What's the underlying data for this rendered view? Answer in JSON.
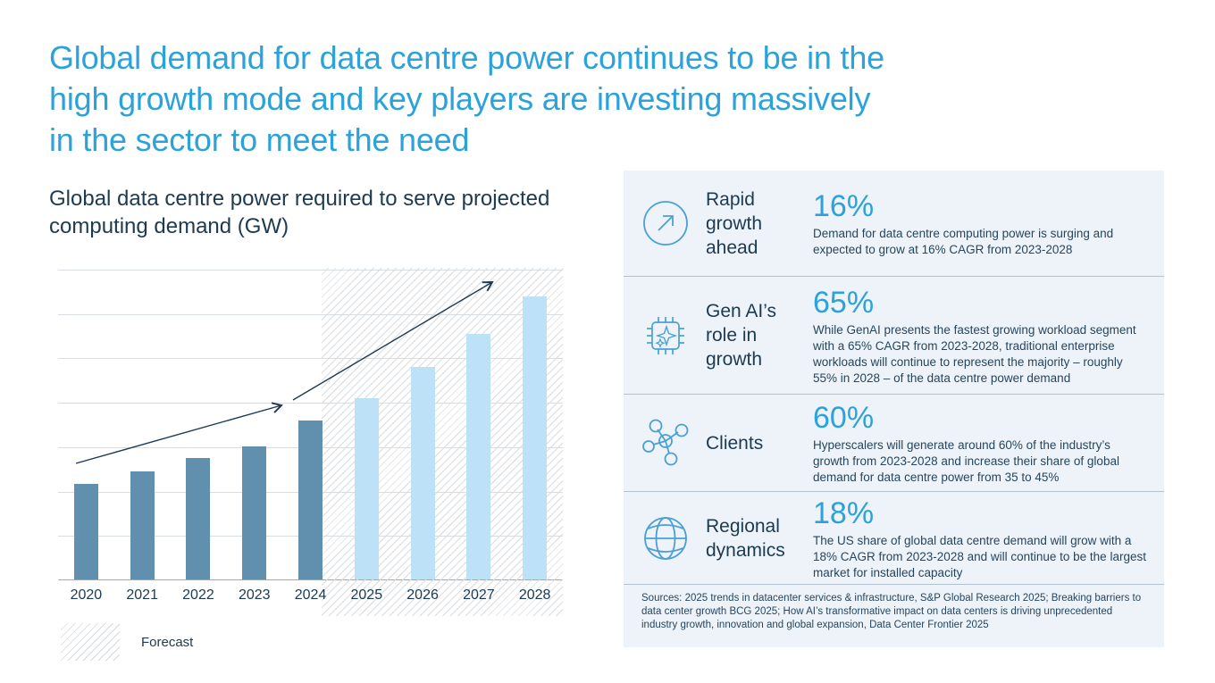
{
  "title": {
    "lines": [
      "Global demand for data centre power continues to be in the",
      "high growth mode and key players are investing massively",
      "in the sector to meet the need"
    ],
    "color": "#2BA2DA"
  },
  "chart": {
    "subtitle": "Global data centre power required to serve projected computing demand (GW)",
    "legend_label": "Forecast"
  },
  "chart_data": {
    "type": "bar",
    "title": "Global data centre power required to serve projected computing demand (GW)",
    "categories": [
      "2020",
      "2021",
      "2022",
      "2023",
      "2024",
      "2025",
      "2026",
      "2027",
      "2028"
    ],
    "values": [
      43,
      49,
      55,
      60,
      72,
      82,
      96,
      111,
      128
    ],
    "units": "GW",
    "actual_years": [
      "2020",
      "2021",
      "2022",
      "2023",
      "2024"
    ],
    "forecast_years": [
      "2025",
      "2026",
      "2027",
      "2028"
    ],
    "ylim": [
      0,
      140
    ],
    "gridline_step": 20,
    "y_axis_labels_visible": false,
    "grid": "horizontal",
    "bar_color_actual": "#6090AD",
    "bar_color_forecast": "#BDE2F8",
    "forecast_region_hatched": true,
    "annotations": [
      "upward trend arrow over 2020-2024 bars",
      "steeper upward trend arrow over 2025-2028 bars"
    ],
    "legend": [
      {
        "label": "Forecast",
        "swatch": "diagonal-hatch"
      }
    ]
  },
  "panel": {
    "bg": "#EDF3F9",
    "rows": [
      {
        "icon": "arrow-up-right-circle",
        "label": "Rapid growth ahead",
        "stat": "16%",
        "desc": "Demand for data centre computing power is surging and expected to grow at 16% CAGR from 2023-2028"
      },
      {
        "icon": "ai-chip",
        "label": "Gen AI’s role in growth",
        "stat": "65%",
        "desc": "While GenAI presents the fastest growing workload segment with a 65% CAGR from 2023-2028, traditional enterprise workloads will continue to represent the majority – roughly 55% in 2028 – of the data centre power demand"
      },
      {
        "icon": "network-nodes",
        "label": "Clients",
        "stat": "60%",
        "desc": "Hyperscalers will generate around 60% of the industry’s growth from 2023-2028 and increase their share of global demand for data centre power from 35 to 45%"
      },
      {
        "icon": "globe",
        "label": "Regional dynamics",
        "stat": "18%",
        "desc": "The US share of global data centre demand will grow with a 18% CAGR from 2023-2028 and will continue to be the largest market for installed capacity"
      }
    ],
    "sources": "Sources: 2025 trends in datacenter services & infrastructure, S&P Global Research 2025; Breaking barriers to data center growth BCG 2025; How AI’s transformative impact on data centers is driving unprecedented industry growth, innovation and global expansion, Data Center Frontier 2025"
  },
  "colors": {
    "title_blue": "#2BA2DA",
    "stat_blue": "#2BA2DA",
    "navy_text": "#1C3A50",
    "desc_text": "#25465E",
    "panel_bg": "#EDF3F9",
    "bar_actual": "#6090AD",
    "bar_forecast": "#BDE2F8",
    "icon_stroke": "#4AA0D3",
    "arrow": "#1F3A52"
  }
}
